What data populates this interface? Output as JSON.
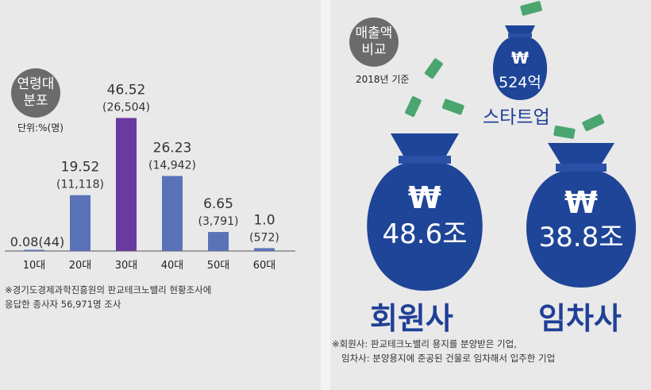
{
  "left_panel": {
    "badge_line1": "연령대",
    "badge_line2": "분포",
    "unit": "단위:%(명)",
    "note_line1": "※경기도경제과학진흥원의 판교테크노밸리 현황조사에",
    "note_line2": "응답한 종사자 56,971명 조사"
  },
  "right_panel": {
    "badge_line1": "매출액",
    "badge_line2": "비교",
    "year_label": "2018년 기준",
    "startup": {
      "symbol": "₩",
      "value": "524억",
      "label": "스타트업"
    },
    "member": {
      "symbol": "₩",
      "value": "48.6조",
      "label": "회원사"
    },
    "tenant": {
      "symbol": "₩",
      "value": "38.8조",
      "label": "임차사"
    },
    "note_line1": "※회원사: 판교테크노밸리 용지를 분양받은 기업,",
    "note_line2": "임차사: 분양용지에 준공된 건물로 임차해서 입주한 기업"
  },
  "colors": {
    "bar": "#5a73b8",
    "highlight_bar": "#6b3aa0",
    "bag": "#1f4598",
    "bag_label": "#1f3f97",
    "money": "#4aa56f"
  },
  "chart_data": {
    "type": "bar",
    "categories": [
      "10대",
      "20대",
      "30대",
      "40대",
      "50대",
      "60대"
    ],
    "values": [
      0.08,
      19.52,
      46.52,
      26.23,
      6.65,
      1.0
    ],
    "value_labels": [
      "0.08",
      "19.52",
      "46.52",
      "26.23",
      "6.65",
      "1.0"
    ],
    "count_labels": [
      "(44)",
      "(11,118)",
      "(26,504)",
      "(14,942)",
      "(3,791)",
      "(572)"
    ],
    "highlight_index": 2,
    "ylim": [
      0,
      50
    ]
  }
}
